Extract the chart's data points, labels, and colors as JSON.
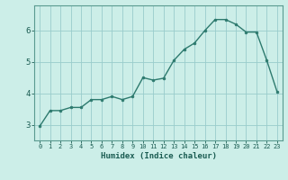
{
  "x": [
    0,
    1,
    2,
    3,
    4,
    5,
    6,
    7,
    8,
    9,
    10,
    11,
    12,
    13,
    14,
    15,
    16,
    17,
    18,
    19,
    20,
    21,
    22,
    23
  ],
  "y": [
    2.95,
    3.45,
    3.45,
    3.55,
    3.55,
    3.8,
    3.8,
    3.9,
    3.8,
    3.9,
    4.5,
    4.42,
    4.48,
    5.05,
    5.4,
    5.6,
    6.0,
    6.35,
    6.35,
    6.2,
    5.95,
    5.95,
    5.05,
    4.05
  ],
  "bg_color": "#cceee8",
  "line_color": "#2d7a6e",
  "marker_color": "#2d7a6e",
  "grid_color": "#99cccc",
  "xlabel": "Humidex (Indice chaleur)",
  "xlabel_color": "#1a5c52",
  "tick_color": "#1a5c52",
  "axis_color": "#5a9a90",
  "ylim": [
    2.5,
    6.8
  ],
  "yticks": [
    3,
    4,
    5,
    6
  ],
  "xlim": [
    -0.5,
    23.5
  ],
  "xlabel_fontsize": 6.5,
  "tick_fontsize_x": 5.0,
  "tick_fontsize_y": 6.5
}
